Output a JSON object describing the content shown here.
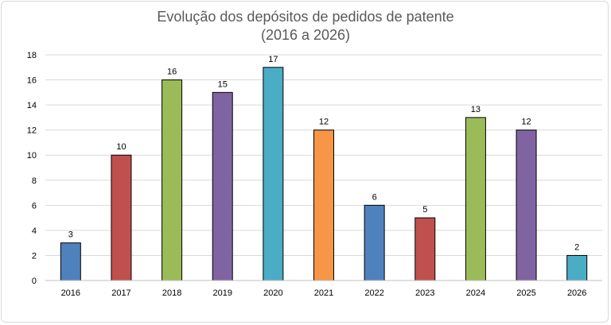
{
  "chart_data": {
    "type": "bar",
    "title": "Evolução dos depósitos de pedidos de patente",
    "subtitle": "(2016 a 2026)",
    "xlabel": "",
    "ylabel": "",
    "ylim": [
      0,
      18
    ],
    "ytick_step": 2,
    "grid": true,
    "legend": "none",
    "categories": [
      "2016",
      "2017",
      "2018",
      "2019",
      "2020",
      "2021",
      "2022",
      "2023",
      "2024",
      "2025",
      "2026"
    ],
    "values": [
      3,
      10,
      16,
      15,
      17,
      12,
      6,
      5,
      13,
      12,
      2
    ],
    "colors": [
      "#4f81bd",
      "#c0504d",
      "#9bbb59",
      "#8064a2",
      "#4bacc6",
      "#f79646",
      "#4f81bd",
      "#c0504d",
      "#9bbb59",
      "#8064a2",
      "#4bacc6"
    ]
  }
}
